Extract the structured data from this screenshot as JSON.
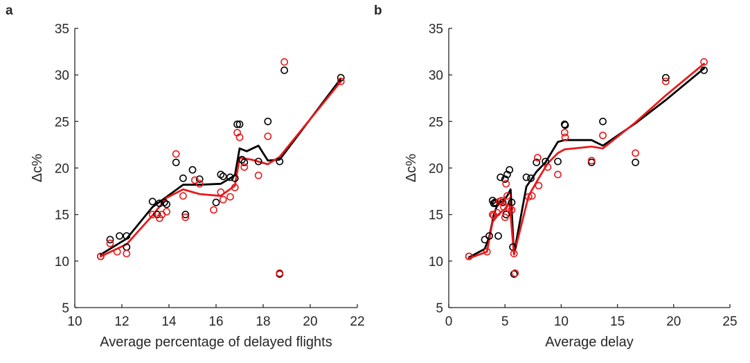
{
  "chart_data": [
    {
      "type": "scatter",
      "panel_label": "a",
      "title": "",
      "xlabel": "Average percentage of delayed flights",
      "ylabel": "Δc%",
      "xlim": [
        10,
        22
      ],
      "ylim": [
        5,
        35
      ],
      "xticks": [
        10,
        12,
        14,
        16,
        18,
        20,
        22
      ],
      "yticks": [
        5,
        10,
        15,
        20,
        25,
        30,
        35
      ],
      "grid": false,
      "legend": "none",
      "colors": {
        "black": "#000000",
        "red": "#e8191b"
      },
      "series": [
        {
          "kind": "points",
          "color": "black",
          "points": [
            [
              11.1,
              10.5
            ],
            [
              11.5,
              12.3
            ],
            [
              11.9,
              12.7
            ],
            [
              12.2,
              11.5
            ],
            [
              12.2,
              12.7
            ],
            [
              13.3,
              16.4
            ],
            [
              13.5,
              15.0
            ],
            [
              13.6,
              16.2
            ],
            [
              13.8,
              16.3
            ],
            [
              13.9,
              16.1
            ],
            [
              14.3,
              20.6
            ],
            [
              14.6,
              18.9
            ],
            [
              14.7,
              15.0
            ],
            [
              15.0,
              19.8
            ],
            [
              15.3,
              18.8
            ],
            [
              16.0,
              16.3
            ],
            [
              16.2,
              19.3
            ],
            [
              16.3,
              19.1
            ],
            [
              16.6,
              19.0
            ],
            [
              16.8,
              18.9
            ],
            [
              16.9,
              24.7
            ],
            [
              17.0,
              24.7
            ],
            [
              17.1,
              20.9
            ],
            [
              17.2,
              20.6
            ],
            [
              17.8,
              20.7
            ],
            [
              18.2,
              25.0
            ],
            [
              18.7,
              8.6
            ],
            [
              18.7,
              20.7
            ],
            [
              18.9,
              30.5
            ],
            [
              21.3,
              29.7
            ]
          ]
        },
        {
          "kind": "points",
          "color": "red",
          "points": [
            [
              11.1,
              10.5
            ],
            [
              11.5,
              11.9
            ],
            [
              11.8,
              11.0
            ],
            [
              12.2,
              10.8
            ],
            [
              13.3,
              15.0
            ],
            [
              13.6,
              14.6
            ],
            [
              13.7,
              15.0
            ],
            [
              13.9,
              15.3
            ],
            [
              14.3,
              21.5
            ],
            [
              14.6,
              17.0
            ],
            [
              14.7,
              14.7
            ],
            [
              15.1,
              18.7
            ],
            [
              15.3,
              18.3
            ],
            [
              15.9,
              15.5
            ],
            [
              16.2,
              17.4
            ],
            [
              16.3,
              16.6
            ],
            [
              16.6,
              16.9
            ],
            [
              16.8,
              17.9
            ],
            [
              16.9,
              23.8
            ],
            [
              17.0,
              23.3
            ],
            [
              17.2,
              20.1
            ],
            [
              17.8,
              19.2
            ],
            [
              18.2,
              23.4
            ],
            [
              18.7,
              8.7
            ],
            [
              18.9,
              31.4
            ],
            [
              21.3,
              29.3
            ]
          ]
        },
        {
          "kind": "line",
          "color": "black",
          "points": [
            [
              11.1,
              10.7
            ],
            [
              12.2,
              12.4
            ],
            [
              13.3,
              15.8
            ],
            [
              13.9,
              16.9
            ],
            [
              14.6,
              18.2
            ],
            [
              15.3,
              18.2
            ],
            [
              16.2,
              18.3
            ],
            [
              16.8,
              19.2
            ],
            [
              17.0,
              22.1
            ],
            [
              17.3,
              21.8
            ],
            [
              17.8,
              22.4
            ],
            [
              18.2,
              20.8
            ],
            [
              18.7,
              20.9
            ],
            [
              21.3,
              29.6
            ]
          ]
        },
        {
          "kind": "line",
          "color": "red",
          "points": [
            [
              11.1,
              10.5
            ],
            [
              12.2,
              11.8
            ],
            [
              13.3,
              14.9
            ],
            [
              13.9,
              16.8
            ],
            [
              14.6,
              17.7
            ],
            [
              15.3,
              17.2
            ],
            [
              16.2,
              17.0
            ],
            [
              16.8,
              18.1
            ],
            [
              17.0,
              21.1
            ],
            [
              17.5,
              20.9
            ],
            [
              18.2,
              20.4
            ],
            [
              18.7,
              21.2
            ],
            [
              21.3,
              29.3
            ]
          ]
        }
      ]
    },
    {
      "type": "scatter",
      "panel_label": "b",
      "title": "",
      "xlabel": "Average delay",
      "ylabel": "Δc%",
      "xlim": [
        0,
        25
      ],
      "ylim": [
        5,
        35
      ],
      "xticks": [
        0,
        5,
        10,
        15,
        20,
        25
      ],
      "yticks": [
        5,
        10,
        15,
        20,
        25,
        30,
        35
      ],
      "grid": false,
      "legend": "none",
      "colors": {
        "black": "#000000",
        "red": "#e8191b"
      },
      "series": [
        {
          "kind": "points",
          "color": "black",
          "points": [
            [
              1.8,
              10.5
            ],
            [
              3.2,
              12.3
            ],
            [
              3.6,
              12.7
            ],
            [
              3.9,
              16.5
            ],
            [
              4.0,
              16.2
            ],
            [
              4.1,
              16.3
            ],
            [
              4.2,
              16.2
            ],
            [
              4.4,
              12.7
            ],
            [
              4.6,
              19.0
            ],
            [
              4.8,
              16.3
            ],
            [
              5.0,
              18.8
            ],
            [
              5.1,
              15.0
            ],
            [
              5.2,
              19.3
            ],
            [
              5.4,
              19.8
            ],
            [
              5.6,
              16.3
            ],
            [
              5.7,
              11.5
            ],
            [
              5.8,
              8.6
            ],
            [
              6.9,
              19.0
            ],
            [
              7.3,
              18.9
            ],
            [
              7.8,
              20.6
            ],
            [
              8.6,
              20.7
            ],
            [
              9.7,
              20.7
            ],
            [
              10.3,
              24.7
            ],
            [
              10.35,
              24.6
            ],
            [
              12.7,
              20.6
            ],
            [
              13.7,
              25.0
            ],
            [
              16.6,
              20.6
            ],
            [
              19.3,
              29.7
            ],
            [
              22.7,
              30.5
            ]
          ]
        },
        {
          "kind": "points",
          "color": "red",
          "points": [
            [
              1.8,
              10.5
            ],
            [
              3.4,
              11.0
            ],
            [
              3.9,
              15.0
            ],
            [
              4.0,
              14.9
            ],
            [
              4.3,
              15.2
            ],
            [
              4.5,
              16.4
            ],
            [
              4.7,
              16.5
            ],
            [
              4.9,
              15.8
            ],
            [
              5.0,
              14.7
            ],
            [
              5.1,
              18.3
            ],
            [
              5.2,
              17.0
            ],
            [
              5.4,
              15.6
            ],
            [
              5.6,
              15.5
            ],
            [
              5.8,
              10.8
            ],
            [
              5.9,
              8.7
            ],
            [
              7.1,
              16.9
            ],
            [
              7.4,
              17.0
            ],
            [
              7.9,
              21.1
            ],
            [
              8.0,
              18.1
            ],
            [
              8.8,
              20.1
            ],
            [
              9.7,
              19.3
            ],
            [
              10.3,
              23.8
            ],
            [
              10.35,
              23.3
            ],
            [
              12.7,
              20.8
            ],
            [
              13.7,
              23.5
            ],
            [
              16.6,
              21.6
            ],
            [
              19.3,
              29.3
            ],
            [
              22.7,
              31.4
            ]
          ]
        },
        {
          "kind": "line",
          "color": "black",
          "points": [
            [
              1.8,
              10.4
            ],
            [
              3.2,
              11.3
            ],
            [
              3.6,
              12.6
            ],
            [
              4.0,
              15.0
            ],
            [
              4.4,
              16.3
            ],
            [
              4.8,
              16.4
            ],
            [
              5.2,
              17.0
            ],
            [
              5.5,
              17.7
            ],
            [
              5.8,
              10.8
            ],
            [
              6.9,
              18.0
            ],
            [
              7.8,
              19.6
            ],
            [
              8.6,
              20.6
            ],
            [
              9.7,
              22.8
            ],
            [
              10.3,
              23.0
            ],
            [
              12.7,
              23.0
            ],
            [
              13.7,
              22.4
            ],
            [
              16.6,
              24.8
            ],
            [
              19.3,
              27.3
            ],
            [
              22.7,
              30.7
            ]
          ]
        },
        {
          "kind": "line",
          "color": "red",
          "points": [
            [
              1.8,
              10.3
            ],
            [
              3.4,
              11.0
            ],
            [
              3.9,
              14.2
            ],
            [
              4.4,
              15.0
            ],
            [
              5.0,
              15.6
            ],
            [
              5.4,
              16.4
            ],
            [
              5.8,
              10.7
            ],
            [
              7.1,
              17.0
            ],
            [
              7.9,
              18.7
            ],
            [
              8.8,
              20.5
            ],
            [
              9.7,
              21.6
            ],
            [
              10.3,
              22.0
            ],
            [
              12.7,
              22.3
            ],
            [
              13.7,
              22.1
            ],
            [
              16.6,
              24.9
            ],
            [
              19.3,
              27.8
            ],
            [
              22.7,
              31.2
            ]
          ]
        }
      ]
    }
  ]
}
